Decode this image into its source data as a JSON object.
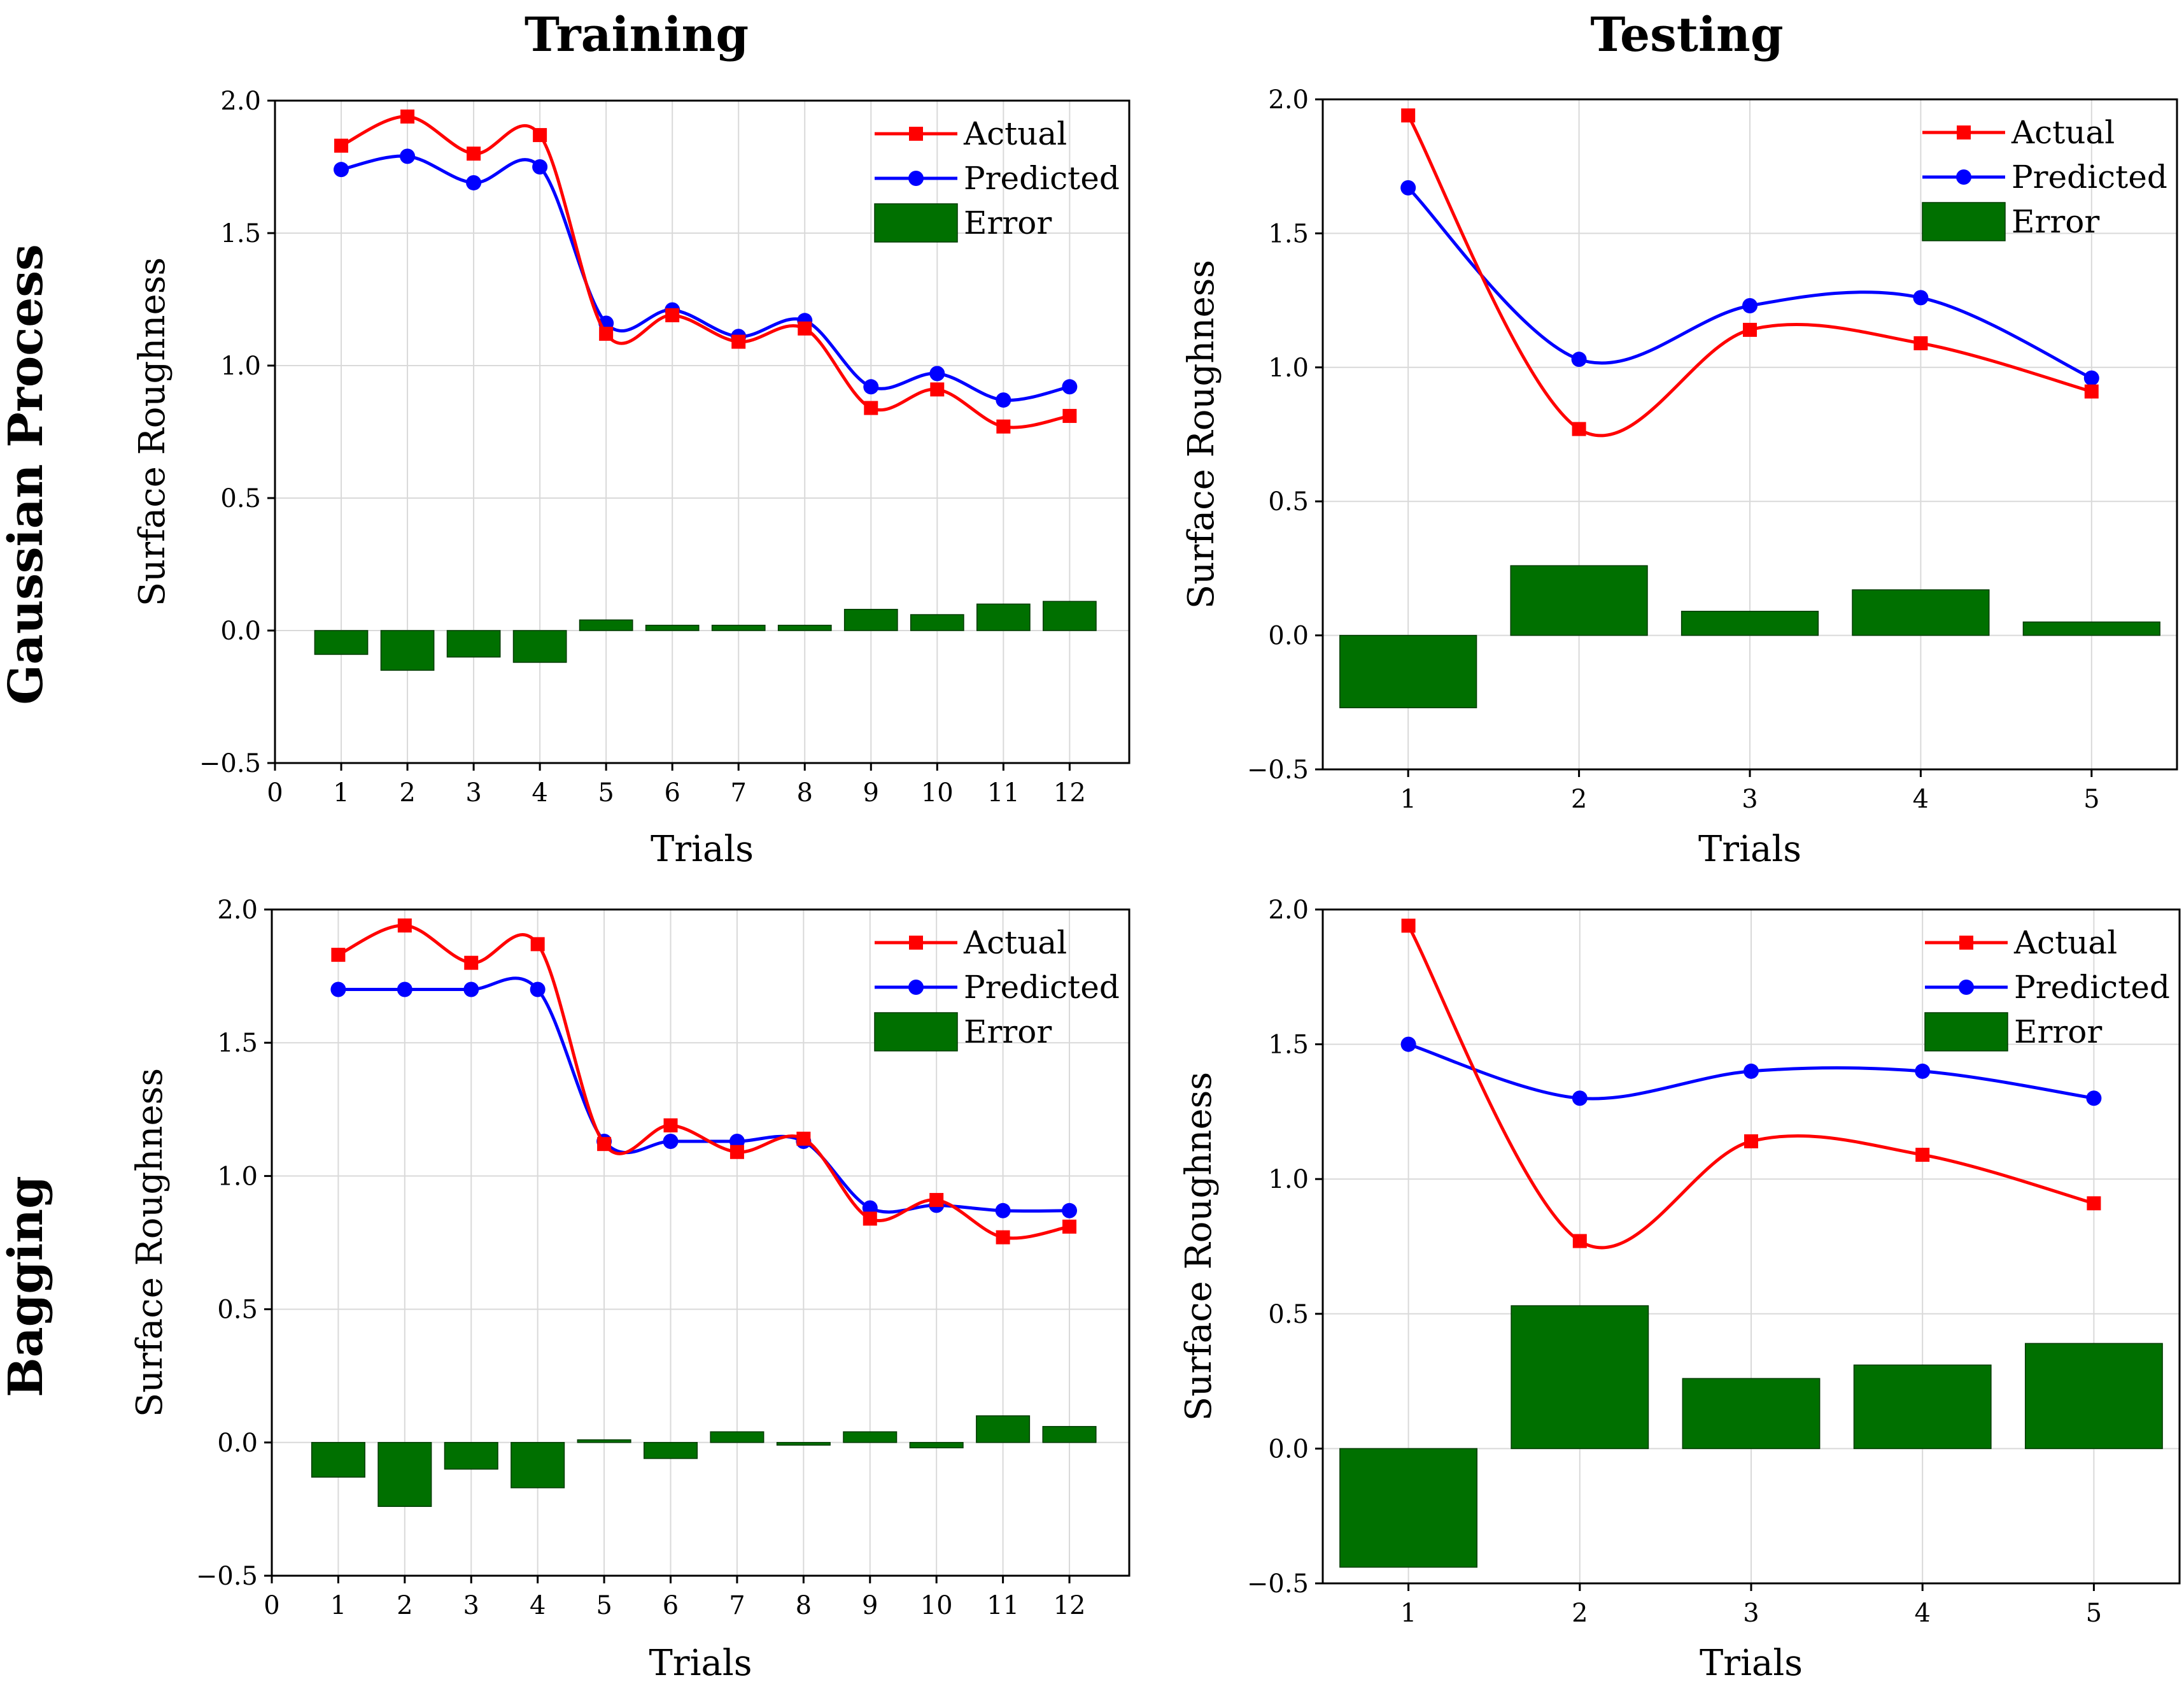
{
  "column_titles": [
    "Training",
    "Testing"
  ],
  "row_titles": [
    "Gaussian Process",
    "Bagging"
  ],
  "colors": {
    "actual": "#ff0000",
    "predicted": "#0000ff",
    "error": "#007000"
  },
  "chart_data": [
    {
      "type": "bar+line",
      "ylabel": "Surface Roughness",
      "xlabel": "Trials",
      "ylim": [
        -0.5,
        2.0
      ],
      "yticks": [
        "−0.5",
        "0.0",
        "0.5",
        "1.0",
        "1.5",
        "2.0"
      ],
      "ytick_values": [
        -0.5,
        0.0,
        0.5,
        1.0,
        1.5,
        2.0
      ],
      "xlim": [
        0,
        12.9
      ],
      "xticks": [
        "0",
        "1",
        "2",
        "3",
        "4",
        "5",
        "6",
        "7",
        "8",
        "9",
        "10",
        "11",
        "12"
      ],
      "xtick_values": [
        0,
        1,
        2,
        3,
        4,
        5,
        6,
        7,
        8,
        9,
        10,
        11,
        12
      ],
      "x": [
        1,
        2,
        3,
        4,
        5,
        6,
        7,
        8,
        9,
        10,
        11,
        12
      ],
      "bar_width": 0.8,
      "series": [
        {
          "name": "Actual",
          "values": [
            1.83,
            1.94,
            1.8,
            1.87,
            1.12,
            1.19,
            1.09,
            1.14,
            0.84,
            0.91,
            0.77,
            0.81
          ]
        },
        {
          "name": "Predicted",
          "values": [
            1.74,
            1.79,
            1.69,
            1.75,
            1.16,
            1.21,
            1.11,
            1.17,
            0.92,
            0.97,
            0.87,
            0.92
          ]
        },
        {
          "name": "Error",
          "values": [
            -0.09,
            -0.15,
            -0.1,
            -0.12,
            0.04,
            0.02,
            0.02,
            0.02,
            0.08,
            0.06,
            0.1,
            0.11
          ]
        }
      ],
      "legend": {
        "position": "top-right",
        "entries": [
          "Actual",
          "Predicted",
          "Error"
        ]
      }
    },
    {
      "type": "bar+line",
      "ylabel": "Surface Roughness",
      "xlabel": "Trials",
      "ylim": [
        -0.5,
        2.0
      ],
      "yticks": [
        "−0.5",
        "0.0",
        "0.5",
        "1.0",
        "1.5",
        "2.0"
      ],
      "ytick_values": [
        -0.5,
        0.0,
        0.5,
        1.0,
        1.5,
        2.0
      ],
      "xlim": [
        0.5,
        5.5
      ],
      "xticks": [
        "1",
        "2",
        "3",
        "4",
        "5"
      ],
      "xtick_values": [
        1,
        2,
        3,
        4,
        5
      ],
      "x": [
        1,
        2,
        3,
        4,
        5
      ],
      "bar_width": 0.8,
      "series": [
        {
          "name": "Actual",
          "values": [
            1.94,
            0.77,
            1.14,
            1.09,
            0.91
          ]
        },
        {
          "name": "Predicted",
          "values": [
            1.67,
            1.03,
            1.23,
            1.26,
            0.96
          ]
        },
        {
          "name": "Error",
          "values": [
            -0.27,
            0.26,
            0.09,
            0.17,
            0.05
          ]
        }
      ],
      "legend": {
        "position": "top-right",
        "entries": [
          "Actual",
          "Predicted",
          "Error"
        ]
      }
    },
    {
      "type": "bar+line",
      "ylabel": "Surface Roughness",
      "xlabel": "Trials",
      "ylim": [
        -0.5,
        2.0
      ],
      "yticks": [
        "−0.5",
        "0.0",
        "0.5",
        "1.0",
        "1.5",
        "2.0"
      ],
      "ytick_values": [
        -0.5,
        0.0,
        0.5,
        1.0,
        1.5,
        2.0
      ],
      "xlim": [
        0,
        12.9
      ],
      "xticks": [
        "0",
        "1",
        "2",
        "3",
        "4",
        "5",
        "6",
        "7",
        "8",
        "9",
        "10",
        "11",
        "12"
      ],
      "xtick_values": [
        0,
        1,
        2,
        3,
        4,
        5,
        6,
        7,
        8,
        9,
        10,
        11,
        12
      ],
      "x": [
        1,
        2,
        3,
        4,
        5,
        6,
        7,
        8,
        9,
        10,
        11,
        12
      ],
      "bar_width": 0.8,
      "series": [
        {
          "name": "Actual",
          "values": [
            1.83,
            1.94,
            1.8,
            1.87,
            1.12,
            1.19,
            1.09,
            1.14,
            0.84,
            0.91,
            0.77,
            0.81
          ]
        },
        {
          "name": "Predicted",
          "values": [
            1.7,
            1.7,
            1.7,
            1.7,
            1.13,
            1.13,
            1.13,
            1.13,
            0.88,
            0.89,
            0.87,
            0.87
          ]
        },
        {
          "name": "Error",
          "values": [
            -0.13,
            -0.24,
            -0.1,
            -0.17,
            0.01,
            -0.06,
            0.04,
            -0.01,
            0.04,
            -0.02,
            0.1,
            0.06
          ]
        }
      ],
      "legend": {
        "position": "top-right",
        "entries": [
          "Actual",
          "Predicted",
          "Error"
        ]
      }
    },
    {
      "type": "bar+line",
      "ylabel": "Surface Roughness",
      "xlabel": "Trials",
      "ylim": [
        -0.5,
        2.0
      ],
      "yticks": [
        "−0.5",
        "0.0",
        "0.5",
        "1.0",
        "1.5",
        "2.0"
      ],
      "ytick_values": [
        -0.5,
        0.0,
        0.5,
        1.0,
        1.5,
        2.0
      ],
      "xlim": [
        0.5,
        5.5
      ],
      "xticks": [
        "1",
        "2",
        "3",
        "4",
        "5"
      ],
      "xtick_values": [
        1,
        2,
        3,
        4,
        5
      ],
      "x": [
        1,
        2,
        3,
        4,
        5
      ],
      "bar_width": 0.8,
      "series": [
        {
          "name": "Actual",
          "values": [
            1.94,
            0.77,
            1.14,
            1.09,
            0.91
          ]
        },
        {
          "name": "Predicted",
          "values": [
            1.5,
            1.3,
            1.4,
            1.4,
            1.3
          ]
        },
        {
          "name": "Error",
          "values": [
            -0.44,
            0.53,
            0.26,
            0.31,
            0.39
          ]
        }
      ],
      "legend": {
        "position": "top-right",
        "entries": [
          "Actual",
          "Predicted",
          "Error"
        ]
      }
    }
  ]
}
